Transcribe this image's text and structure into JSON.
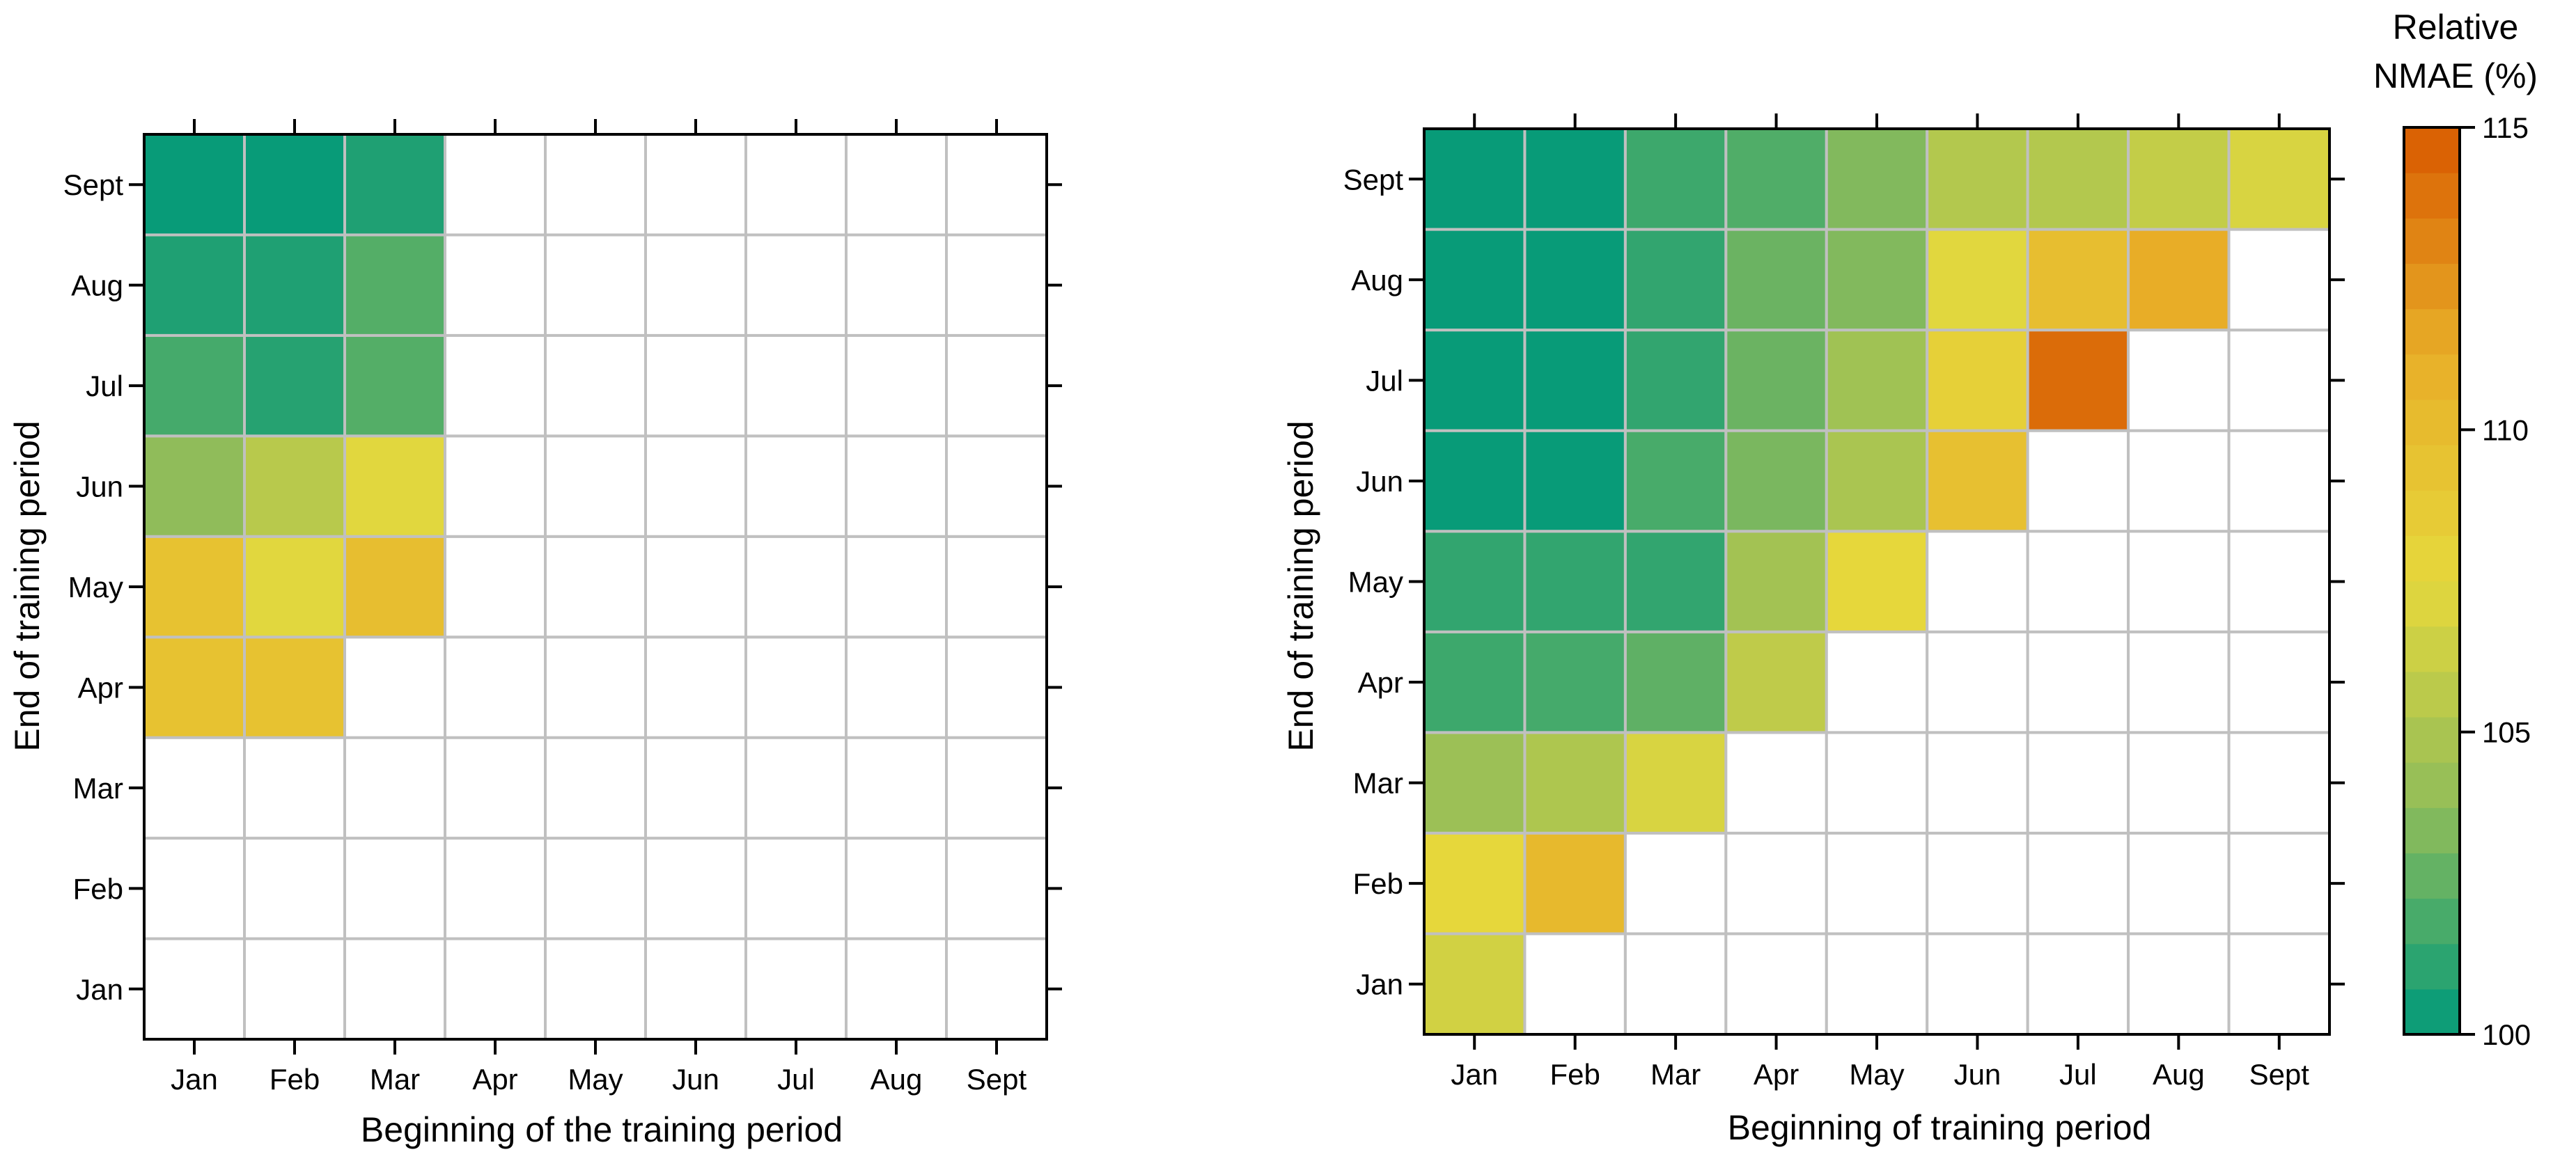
{
  "chart_data": [
    {
      "type": "heatmap",
      "xlabel": "Beginning of the training period",
      "ylabel": "End of training period",
      "x_categories": [
        "Jan",
        "Feb",
        "Mar",
        "Apr",
        "May",
        "Jun",
        "Jul",
        "Aug",
        "Sept"
      ],
      "y_categories": [
        "Jan",
        "Feb",
        "Mar",
        "Apr",
        "May",
        "Jun",
        "Jul",
        "Aug",
        "Sept"
      ],
      "cells": [
        {
          "x": "Jan",
          "y": "Apr",
          "value": 109.5
        },
        {
          "x": "Feb",
          "y": "Apr",
          "value": 109.5
        },
        {
          "x": "Jan",
          "y": "May",
          "value": 109.5
        },
        {
          "x": "Feb",
          "y": "May",
          "value": 107.3
        },
        {
          "x": "Mar",
          "y": "May",
          "value": 109.8
        },
        {
          "x": "Jan",
          "y": "Jun",
          "value": 103.8
        },
        {
          "x": "Feb",
          "y": "Jun",
          "value": 105.5
        },
        {
          "x": "Mar",
          "y": "Jun",
          "value": 107.3
        },
        {
          "x": "Jan",
          "y": "Jul",
          "value": 101.8
        },
        {
          "x": "Feb",
          "y": "Jul",
          "value": 101.0
        },
        {
          "x": "Mar",
          "y": "Jul",
          "value": 102.2
        },
        {
          "x": "Jan",
          "y": "Aug",
          "value": 100.8
        },
        {
          "x": "Feb",
          "y": "Aug",
          "value": 100.8
        },
        {
          "x": "Mar",
          "y": "Aug",
          "value": 102.2
        },
        {
          "x": "Jan",
          "y": "Sept",
          "value": 100.2
        },
        {
          "x": "Feb",
          "y": "Sept",
          "value": 100.2
        },
        {
          "x": "Mar",
          "y": "Sept",
          "value": 100.8
        }
      ]
    },
    {
      "type": "heatmap",
      "xlabel": "Beginning of training period",
      "ylabel": "End of training period",
      "x_categories": [
        "Jan",
        "Feb",
        "Mar",
        "Apr",
        "May",
        "Jun",
        "Jul",
        "Aug",
        "Sept"
      ],
      "y_categories": [
        "Jan",
        "Feb",
        "Mar",
        "Apr",
        "May",
        "Jun",
        "Jul",
        "Aug",
        "Sept"
      ],
      "cells": [
        {
          "x": "Jan",
          "y": "Jan",
          "value": 106.6
        },
        {
          "x": "Jan",
          "y": "Feb",
          "value": 107.6
        },
        {
          "x": "Feb",
          "y": "Feb",
          "value": 110.3
        },
        {
          "x": "Jan",
          "y": "Mar",
          "value": 104.3
        },
        {
          "x": "Feb",
          "y": "Mar",
          "value": 105.1
        },
        {
          "x": "Mar",
          "y": "Mar",
          "value": 106.9
        },
        {
          "x": "Jan",
          "y": "Apr",
          "value": 101.6
        },
        {
          "x": "Feb",
          "y": "Apr",
          "value": 101.8
        },
        {
          "x": "Mar",
          "y": "Apr",
          "value": 102.5
        },
        {
          "x": "Apr",
          "y": "Apr",
          "value": 105.8
        },
        {
          "x": "Jan",
          "y": "May",
          "value": 101.3
        },
        {
          "x": "Feb",
          "y": "May",
          "value": 101.3
        },
        {
          "x": "Mar",
          "y": "May",
          "value": 101.3
        },
        {
          "x": "Apr",
          "y": "May",
          "value": 104.6
        },
        {
          "x": "May",
          "y": "May",
          "value": 107.6
        },
        {
          "x": "Jan",
          "y": "Jun",
          "value": 100.2
        },
        {
          "x": "Feb",
          "y": "Jun",
          "value": 100.2
        },
        {
          "x": "Mar",
          "y": "Jun",
          "value": 101.9
        },
        {
          "x": "Apr",
          "y": "Jun",
          "value": 103.2
        },
        {
          "x": "May",
          "y": "Jun",
          "value": 104.9
        },
        {
          "x": "Jun",
          "y": "Jun",
          "value": 109.6
        },
        {
          "x": "Jan",
          "y": "Jul",
          "value": 100.2
        },
        {
          "x": "Feb",
          "y": "Jul",
          "value": 100.2
        },
        {
          "x": "Mar",
          "y": "Jul",
          "value": 101.3
        },
        {
          "x": "Apr",
          "y": "Jul",
          "value": 102.8
        },
        {
          "x": "May",
          "y": "Jul",
          "value": 104.5
        },
        {
          "x": "Jun",
          "y": "Jul",
          "value": 108.2
        },
        {
          "x": "Jul",
          "y": "Jul",
          "value": 114.2
        },
        {
          "x": "Jan",
          "y": "Aug",
          "value": 100.2
        },
        {
          "x": "Feb",
          "y": "Aug",
          "value": 100.2
        },
        {
          "x": "Mar",
          "y": "Aug",
          "value": 101.3
        },
        {
          "x": "Apr",
          "y": "Aug",
          "value": 102.8
        },
        {
          "x": "May",
          "y": "Aug",
          "value": 103.4
        },
        {
          "x": "Jun",
          "y": "Aug",
          "value": 107.3
        },
        {
          "x": "Jul",
          "y": "Aug",
          "value": 109.8
        },
        {
          "x": "Aug",
          "y": "Aug",
          "value": 111.3
        },
        {
          "x": "Jan",
          "y": "Sept",
          "value": 100.2
        },
        {
          "x": "Feb",
          "y": "Sept",
          "value": 100.2
        },
        {
          "x": "Mar",
          "y": "Sept",
          "value": 101.6
        },
        {
          "x": "Apr",
          "y": "Sept",
          "value": 102.1
        },
        {
          "x": "May",
          "y": "Sept",
          "value": 103.4
        },
        {
          "x": "Jun",
          "y": "Sept",
          "value": 105.3
        },
        {
          "x": "Jul",
          "y": "Sept",
          "value": 105.3
        },
        {
          "x": "Aug",
          "y": "Sept",
          "value": 106.0
        },
        {
          "x": "Sept",
          "y": "Sept",
          "value": 106.9
        }
      ]
    }
  ],
  "colorbar": {
    "title_line1": "Relative",
    "title_line2": "NMAE (%)",
    "min": 100,
    "max": 115,
    "ticks": [
      100,
      105,
      110,
      115
    ],
    "color_stops": [
      "#00997a",
      "#8fbc5a",
      "#e6d83c",
      "#e8ae28",
      "#d85a00"
    ]
  },
  "colors": {
    "grid": "#c0c0c0",
    "empty_cell": "#ffffff",
    "axis": "#000000"
  }
}
